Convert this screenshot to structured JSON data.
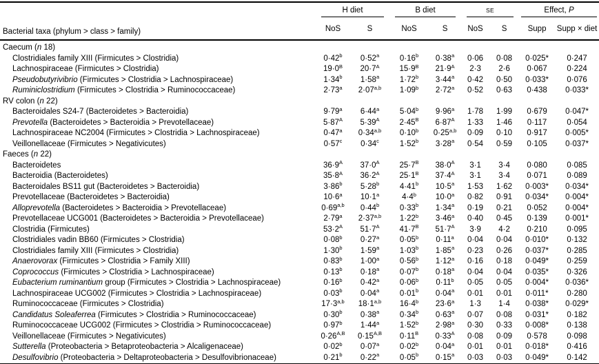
{
  "header": {
    "taxa": "Bacterial taxa (phylum > class > family)",
    "groups": [
      {
        "label": "H diet",
        "italic": ""
      },
      {
        "label": "B diet",
        "italic": ""
      },
      {
        "label": "SE",
        "italic": ""
      },
      {
        "label": "Effect, ",
        "italic": "P"
      }
    ],
    "sub": [
      "NoS",
      "S",
      "NoS",
      "S",
      "NoS",
      "S",
      "Supp",
      "Supp × diet"
    ]
  },
  "sections": [
    {
      "name": "Caecum",
      "n_label": "n",
      "n": "18",
      "rows": [
        {
          "i": "",
          "t": "Clostridiales family XIII (Firmicutes > Clostridia)",
          "c": [
            [
              "0·42",
              "b"
            ],
            [
              "0·52",
              "a"
            ],
            [
              "0·16",
              "b"
            ],
            [
              "0·38",
              "a"
            ],
            [
              "0·06",
              ""
            ],
            [
              "0·08",
              ""
            ],
            [
              "0·025*",
              ""
            ],
            [
              "0·247",
              ""
            ]
          ]
        },
        {
          "i": "",
          "t": "Lachnospiraceae (Firmicutes > Clostridia)",
          "c": [
            [
              "19·0",
              "B"
            ],
            [
              "20·7",
              "A"
            ],
            [
              "15·9",
              "B"
            ],
            [
              "21·9",
              "A"
            ],
            [
              "2·3",
              ""
            ],
            [
              "2·6",
              ""
            ],
            [
              "0·067",
              ""
            ],
            [
              "0·224",
              ""
            ]
          ]
        },
        {
          "i": "Pseudobutyrivibrio",
          "t": " (Firmicutes > Clostridia > Lachnospiraceae)",
          "c": [
            [
              "1·34",
              "b"
            ],
            [
              "1·58",
              "a"
            ],
            [
              "1·72",
              "b"
            ],
            [
              "3·44",
              "a"
            ],
            [
              "0·42",
              ""
            ],
            [
              "0·50",
              ""
            ],
            [
              "0·033*",
              ""
            ],
            [
              "0·076",
              ""
            ]
          ]
        },
        {
          "i": "Ruminiclostridium",
          "t": " (Firmicutes > Clostridia > Ruminococcaceae)",
          "c": [
            [
              "2·73",
              "a"
            ],
            [
              "2·07",
              "a,b"
            ],
            [
              "1·09",
              "b"
            ],
            [
              "2·72",
              "a"
            ],
            [
              "0·52",
              ""
            ],
            [
              "0·63",
              ""
            ],
            [
              "0·438",
              ""
            ],
            [
              "0·033*",
              ""
            ]
          ]
        }
      ]
    },
    {
      "name": "RV colon",
      "n_label": "n",
      "n": "22",
      "rows": [
        {
          "i": "",
          "t": "Bacteroidales S24-7 (Bacteroidetes > Bacteroidia)",
          "c": [
            [
              "9·79",
              "a"
            ],
            [
              "6·44",
              "a"
            ],
            [
              "5·04",
              "b"
            ],
            [
              "9·96",
              "a"
            ],
            [
              "1·78",
              ""
            ],
            [
              "1·99",
              ""
            ],
            [
              "0·679",
              ""
            ],
            [
              "0·047*",
              ""
            ]
          ]
        },
        {
          "i": "Prevotella",
          "t": " (Bacteroidetes > Bacteroidia > Prevotellaceae)",
          "c": [
            [
              "5·87",
              "A"
            ],
            [
              "5·39",
              "A"
            ],
            [
              "2·45",
              "B"
            ],
            [
              "6·87",
              "A"
            ],
            [
              "1·33",
              ""
            ],
            [
              "1·46",
              ""
            ],
            [
              "0·117",
              ""
            ],
            [
              "0·054",
              ""
            ]
          ]
        },
        {
          "i": "",
          "t": "Lachnospiraceae NC2004 (Firmicutes > Clostridia > Lachnospiraceae)",
          "c": [
            [
              "0·47",
              "a"
            ],
            [
              "0·34",
              "a,b"
            ],
            [
              "0·10",
              "b"
            ],
            [
              "0·25",
              "a,b"
            ],
            [
              "0·09",
              ""
            ],
            [
              "0·10",
              ""
            ],
            [
              "0·917",
              ""
            ],
            [
              "0·005*",
              ""
            ]
          ]
        },
        {
          "i": "",
          "t": "Veillonellaceae (Firmicutes > Negativicutes)",
          "c": [
            [
              "0·57",
              "c"
            ],
            [
              "0·34",
              "c"
            ],
            [
              "1·52",
              "b"
            ],
            [
              "3·28",
              "a"
            ],
            [
              "0·54",
              ""
            ],
            [
              "0·59",
              ""
            ],
            [
              "0·105",
              ""
            ],
            [
              "0·037*",
              ""
            ]
          ]
        }
      ]
    },
    {
      "name": "Faeces",
      "n_label": "n",
      "n": "22",
      "rows": [
        {
          "i": "",
          "t": "Bacteroidetes",
          "c": [
            [
              "36·9",
              "A"
            ],
            [
              "37·0",
              "A"
            ],
            [
              "25·7",
              "B"
            ],
            [
              "38·0",
              "A"
            ],
            [
              "3·1",
              ""
            ],
            [
              "3·4",
              ""
            ],
            [
              "0·080",
              ""
            ],
            [
              "0·085",
              ""
            ]
          ]
        },
        {
          "i": "",
          "t": "Bacteroidia (Bacteroidetes)",
          "c": [
            [
              "35·8",
              "A"
            ],
            [
              "36·2",
              "A"
            ],
            [
              "25·1",
              "B"
            ],
            [
              "37·4",
              "A"
            ],
            [
              "3·1",
              ""
            ],
            [
              "3·4",
              ""
            ],
            [
              "0·071",
              ""
            ],
            [
              "0·089",
              ""
            ]
          ]
        },
        {
          "i": "",
          "t": "Bacteroidales BS11 gut (Bacteroidetes > Bacteroidia)",
          "c": [
            [
              "3·86",
              "b"
            ],
            [
              "5·28",
              "b"
            ],
            [
              "4·41",
              "b"
            ],
            [
              "10·5",
              "a"
            ],
            [
              "1·53",
              ""
            ],
            [
              "1·62",
              ""
            ],
            [
              "0·003*",
              ""
            ],
            [
              "0·034*",
              ""
            ]
          ]
        },
        {
          "i": "",
          "t": "Prevotellaceae (Bacteroidetes > Bacteroidia)",
          "c": [
            [
              "10·6",
              "a"
            ],
            [
              "10·1",
              "a"
            ],
            [
              "4·4",
              "b"
            ],
            [
              "10·0",
              "a"
            ],
            [
              "0·82",
              ""
            ],
            [
              "0·91",
              ""
            ],
            [
              "0·034*",
              ""
            ],
            [
              "0·004*",
              ""
            ]
          ]
        },
        {
          "i": "Alloprevotella",
          "t": " (Bacteroidetes > Bacteroidia > Prevotellaceae)",
          "c": [
            [
              "0·69",
              "a,b"
            ],
            [
              "0·44",
              "b"
            ],
            [
              "0·33",
              "b"
            ],
            [
              "1·34",
              "a"
            ],
            [
              "0·19",
              ""
            ],
            [
              "0·21",
              ""
            ],
            [
              "0·052",
              ""
            ],
            [
              "0·004*",
              ""
            ]
          ]
        },
        {
          "i": "",
          "t": "Prevotellaceae UCG001 (Bacteroidetes > Bacteroidia > Prevotellaceae)",
          "c": [
            [
              "2·79",
              "a"
            ],
            [
              "2·37",
              "a,b"
            ],
            [
              "1·22",
              "b"
            ],
            [
              "3·46",
              "a"
            ],
            [
              "0·40",
              ""
            ],
            [
              "0·45",
              ""
            ],
            [
              "0·139",
              ""
            ],
            [
              "0·001*",
              ""
            ]
          ]
        },
        {
          "i": "",
          "t": "Clostridia (Firmicutes)",
          "c": [
            [
              "53·2",
              "A"
            ],
            [
              "51·7",
              "A"
            ],
            [
              "41·7",
              "B"
            ],
            [
              "51·7",
              "A"
            ],
            [
              "3·9",
              ""
            ],
            [
              "4·2",
              ""
            ],
            [
              "0·210",
              ""
            ],
            [
              "0·095",
              ""
            ]
          ]
        },
        {
          "i": "",
          "t": "Clostridiales vadin BB60 (Firmicutes > Clostridia)",
          "c": [
            [
              "0·08",
              "b"
            ],
            [
              "0·27",
              "a"
            ],
            [
              "0·05",
              "b"
            ],
            [
              "0·11",
              "a"
            ],
            [
              "0·04",
              ""
            ],
            [
              "0·04",
              ""
            ],
            [
              "0·010*",
              ""
            ],
            [
              "0·132",
              ""
            ]
          ]
        },
        {
          "i": "",
          "t": "Clostridiales family XIII (Firmicutes > Clostridia)",
          "c": [
            [
              "1·30",
              "b"
            ],
            [
              "1·59",
              "a"
            ],
            [
              "1·03",
              "b"
            ],
            [
              "1·85",
              "a"
            ],
            [
              "0·23",
              ""
            ],
            [
              "0·26",
              ""
            ],
            [
              "0·037*",
              ""
            ],
            [
              "0·285",
              ""
            ]
          ]
        },
        {
          "i": "Anaerovorax",
          "t": " (Firmicutes > Clostridia > Family XIII)",
          "c": [
            [
              "0·83",
              "b"
            ],
            [
              "1·00",
              "a"
            ],
            [
              "0·56",
              "b"
            ],
            [
              "1·12",
              "a"
            ],
            [
              "0·16",
              ""
            ],
            [
              "0·18",
              ""
            ],
            [
              "0·049*",
              ""
            ],
            [
              "0·259",
              ""
            ]
          ]
        },
        {
          "i": "Coprococcus",
          "t": " (Firmicutes > Clostridia > Lachnospiraceae)",
          "c": [
            [
              "0·13",
              "b"
            ],
            [
              "0·18",
              "a"
            ],
            [
              "0·07",
              "b"
            ],
            [
              "0·18",
              "a"
            ],
            [
              "0·04",
              ""
            ],
            [
              "0·04",
              ""
            ],
            [
              "0·035*",
              ""
            ],
            [
              "0·326",
              ""
            ]
          ]
        },
        {
          "i": "Eubacterium ruminantium",
          "t": " group (Firmicutes > Clostridia > Lachnospiraceae)",
          "c": [
            [
              "0·16",
              "b"
            ],
            [
              "0·42",
              "a"
            ],
            [
              "0·06",
              "b"
            ],
            [
              "0·11",
              "b"
            ],
            [
              "0·05",
              ""
            ],
            [
              "0·05",
              ""
            ],
            [
              "0·004*",
              ""
            ],
            [
              "0·036*",
              ""
            ]
          ]
        },
        {
          "i": "",
          "t": "Lachnospiraceae UCG002 (Firmicutes > Clostridia > Lachnospiraceae)",
          "c": [
            [
              "0·03",
              "b"
            ],
            [
              "0·04",
              "a"
            ],
            [
              "0·01",
              "b"
            ],
            [
              "0·04",
              "a"
            ],
            [
              "0·01",
              ""
            ],
            [
              "0·01",
              ""
            ],
            [
              "0·011*",
              ""
            ],
            [
              "0·280",
              ""
            ]
          ]
        },
        {
          "i": "",
          "t": "Ruminococcaceae (Firmicutes > Clostridia)",
          "c": [
            [
              "17·3",
              "a,b"
            ],
            [
              "18·1",
              "a,b"
            ],
            [
              "16·4",
              "b"
            ],
            [
              "23·6",
              "a"
            ],
            [
              "1·3",
              ""
            ],
            [
              "1·4",
              ""
            ],
            [
              "0·038*",
              ""
            ],
            [
              "0·029*",
              ""
            ]
          ]
        },
        {
          "i": "Candidatus Soleaferrea",
          "t": " (Firmicutes > Clostridia > Ruminococcaceae)",
          "c": [
            [
              "0·30",
              "b"
            ],
            [
              "0·38",
              "a"
            ],
            [
              "0·34",
              "b"
            ],
            [
              "0·63",
              "a"
            ],
            [
              "0·07",
              ""
            ],
            [
              "0·08",
              ""
            ],
            [
              "0·031*",
              ""
            ],
            [
              "0·182",
              ""
            ]
          ]
        },
        {
          "i": "",
          "t": "Ruminococcaceae UCG002 (Firmicutes > Clostridia > Ruminococcaceae)",
          "c": [
            [
              "0·97",
              "b"
            ],
            [
              "1·44",
              "a"
            ],
            [
              "1·52",
              "b"
            ],
            [
              "2·98",
              "a"
            ],
            [
              "0·30",
              ""
            ],
            [
              "0·33",
              ""
            ],
            [
              "0·008*",
              ""
            ],
            [
              "0·138",
              ""
            ]
          ]
        },
        {
          "i": "",
          "t": "Veillonellaceae (Firmicutes > Negativicutes)",
          "c": [
            [
              "0·26",
              "A,B"
            ],
            [
              "0·15",
              "A,B"
            ],
            [
              "0·11",
              "B"
            ],
            [
              "0·33",
              "A"
            ],
            [
              "0·08",
              ""
            ],
            [
              "0·09",
              ""
            ],
            [
              "0·578",
              ""
            ],
            [
              "0·098",
              ""
            ]
          ]
        },
        {
          "i": "Sutterella",
          "t": " (Proteobacteria > Betaproteobacteria > Alcaligenaceae)",
          "c": [
            [
              "0·02",
              "b"
            ],
            [
              "0·07",
              "a"
            ],
            [
              "0·02",
              "b"
            ],
            [
              "0·04",
              "a"
            ],
            [
              "0·01",
              ""
            ],
            [
              "0·01",
              ""
            ],
            [
              "0·018*",
              ""
            ],
            [
              "0·416",
              ""
            ]
          ]
        },
        {
          "i": "Desulfovibrio",
          "t": " (Proteobacteria > Deltaproteobacteria > Desulfovibrionaceae)",
          "c": [
            [
              "0·21",
              "b"
            ],
            [
              "0·22",
              "a"
            ],
            [
              "0·05",
              "b"
            ],
            [
              "0·15",
              "a"
            ],
            [
              "0·03",
              ""
            ],
            [
              "0·03",
              ""
            ],
            [
              "0·049*",
              ""
            ],
            [
              "0·142",
              ""
            ]
          ]
        }
      ]
    }
  ]
}
